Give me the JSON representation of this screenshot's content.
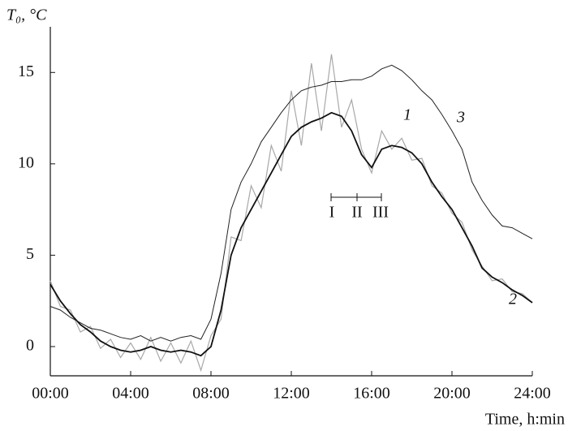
{
  "chart_data": {
    "type": "line",
    "y_label": "T₀, °C",
    "x_label": "Time, h:min",
    "x": [
      0,
      0.5,
      1,
      1.5,
      2,
      2.5,
      3,
      3.5,
      4,
      4.5,
      5,
      5.5,
      6,
      6.5,
      7,
      7.5,
      8,
      8.5,
      9,
      9.5,
      10,
      10.5,
      11,
      11.5,
      12,
      12.5,
      13,
      13.5,
      14,
      14.5,
      15,
      15.5,
      16,
      16.5,
      17,
      17.5,
      18,
      18.5,
      19,
      19.5,
      20,
      20.5,
      21,
      21.5,
      22,
      22.5,
      23,
      23.5,
      24
    ],
    "series": [
      {
        "name": "1",
        "color": "#a8a8a8",
        "values": [
          3.6,
          2.2,
          2.0,
          0.8,
          1.1,
          -0.1,
          0.4,
          -0.6,
          0.2,
          -0.7,
          0.5,
          -0.8,
          0.2,
          -0.9,
          0.3,
          -1.3,
          0.6,
          1.5,
          6,
          5.8,
          8.8,
          7.6,
          11,
          9.6,
          14,
          11,
          15.5,
          11.8,
          16,
          12,
          13.5,
          10.8,
          9.5,
          11.8,
          10.8,
          11.4,
          10.2,
          10.3,
          8.8,
          8.4,
          7.3,
          6.8,
          5.3,
          4.4,
          3.6,
          3.7,
          3.0,
          2.9,
          2.4
        ]
      },
      {
        "name": "2",
        "color": "#111111",
        "values": [
          3.4,
          2.5,
          1.8,
          1.2,
          0.8,
          0.3,
          0,
          -0.2,
          -0.3,
          -0.2,
          0,
          -0.2,
          -0.3,
          -0.2,
          -0.3,
          -0.5,
          0,
          2,
          5,
          6.5,
          7.5,
          8.5,
          9.5,
          10.5,
          11.5,
          12,
          12.3,
          12.5,
          12.8,
          12.6,
          11.8,
          10.5,
          9.8,
          10.8,
          11,
          10.9,
          10.6,
          10,
          9,
          8.2,
          7.5,
          6.5,
          5.5,
          4.3,
          3.8,
          3.5,
          3.1,
          2.8,
          2.4
        ]
      },
      {
        "name": "3",
        "color": "#222222",
        "values": [
          2.2,
          2,
          1.6,
          1.3,
          1,
          0.9,
          0.7,
          0.5,
          0.4,
          0.6,
          0.3,
          0.5,
          0.3,
          0.5,
          0.6,
          0.4,
          1.5,
          4,
          7.5,
          9,
          10,
          11.2,
          12,
          12.8,
          13.5,
          14,
          14.2,
          14.3,
          14.5,
          14.5,
          14.6,
          14.6,
          14.8,
          15.2,
          15.4,
          15.1,
          14.6,
          14,
          13.5,
          12.7,
          11.8,
          10.8,
          9,
          8,
          7.2,
          6.6,
          6.5,
          6.2,
          5.9
        ]
      }
    ],
    "annotations": [
      "I",
      "II",
      "III"
    ],
    "xlim": [
      0,
      24
    ],
    "xticks": [
      {
        "value": 0,
        "label": "00:00"
      },
      {
        "value": 4,
        "label": "04:00"
      },
      {
        "value": 8,
        "label": "08:00"
      },
      {
        "value": 12,
        "label": "12:00"
      },
      {
        "value": 16,
        "label": "16:00"
      },
      {
        "value": 20,
        "label": "20:00"
      },
      {
        "value": 24,
        "label": "24:00"
      }
    ],
    "ylim": [
      -1.6,
      17.5
    ],
    "yticks": [
      0,
      5,
      10,
      15
    ]
  }
}
